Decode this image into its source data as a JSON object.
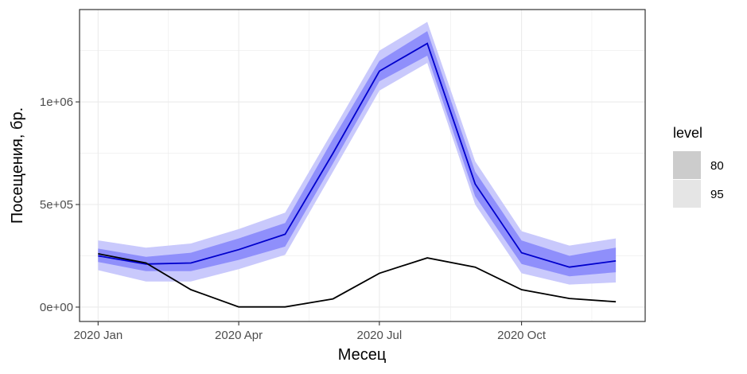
{
  "chart_data": {
    "type": "line",
    "xlabel": "Месец",
    "ylabel": "Посещения, бр.",
    "x": [
      "2020-01",
      "2020-02",
      "2020-03",
      "2020-04",
      "2020-05",
      "2020-06",
      "2020-07",
      "2020-08",
      "2020-09",
      "2020-10",
      "2020-11",
      "2020-12"
    ],
    "x_ticks": [
      {
        "x": "2020-01",
        "label": "2020 Jan"
      },
      {
        "x": "2020-04",
        "label": "2020 Apr"
      },
      {
        "x": "2020-07",
        "label": "2020 Jul"
      },
      {
        "x": "2020-10",
        "label": "2020 Oct"
      }
    ],
    "y_ticks": [
      {
        "value": 0,
        "label": "0e+00"
      },
      {
        "value": 500000,
        "label": "5e+05"
      },
      {
        "value": 1000000,
        "label": "1e+06"
      }
    ],
    "ylim": [
      -70000,
      1450000
    ],
    "xlim": [
      "2019-12-20",
      "2020-12-20"
    ],
    "grid": true,
    "actual": {
      "color": "#000000",
      "values": [
        260000,
        215000,
        85000,
        1000,
        1000,
        40000,
        165000,
        240000,
        195000,
        85000,
        42000,
        26000
      ]
    },
    "forecast": {
      "color": "#0000cc",
      "values": [
        250000,
        210000,
        215000,
        280000,
        355000,
        750000,
        1150000,
        1285000,
        600000,
        265000,
        195000,
        225000
      ],
      "interval_80": {
        "lower": [
          220000,
          175000,
          175000,
          230000,
          295000,
          700000,
          1100000,
          1225000,
          540000,
          210000,
          150000,
          170000
        ],
        "upper": [
          285000,
          245000,
          265000,
          335000,
          410000,
          820000,
          1200000,
          1345000,
          660000,
          325000,
          250000,
          290000
        ]
      },
      "interval_95": {
        "lower": [
          180000,
          125000,
          125000,
          185000,
          255000,
          660000,
          1055000,
          1190000,
          500000,
          165000,
          110000,
          120000
        ],
        "upper": [
          325000,
          290000,
          310000,
          380000,
          460000,
          860000,
          1250000,
          1390000,
          710000,
          370000,
          300000,
          335000
        ]
      }
    },
    "band_colors": {
      "interval_80": "#8f8ffb",
      "interval_95": "#c9c9fc"
    },
    "legend": {
      "title": "level",
      "position": "right",
      "items": [
        {
          "label": "80",
          "color": "#cccccc"
        },
        {
          "label": "95",
          "color": "#e5e5e5"
        }
      ]
    }
  }
}
